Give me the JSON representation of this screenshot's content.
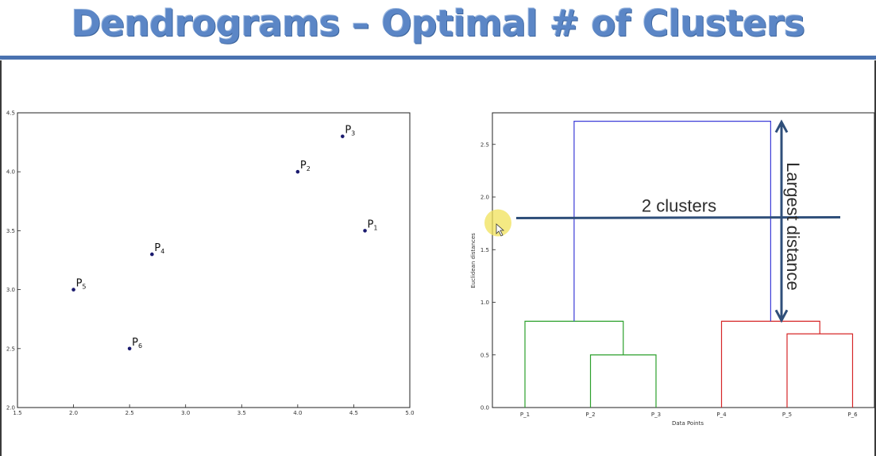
{
  "page": {
    "title": "Dendrograms – Optimal # of Clusters"
  },
  "colors": {
    "title": "#5b86c6",
    "rule": "#4a72b0",
    "cluster_green": "#2ca02c",
    "cluster_red": "#d62728",
    "root_blue": "#3b3bd8",
    "annotation": "#2f4f7a",
    "highlight": "#f0e25a"
  },
  "chart_data": [
    {
      "type": "scatter",
      "title": "",
      "xlabel": "",
      "ylabel": "",
      "xlim": [
        1.5,
        5.0
      ],
      "ylim": [
        2.0,
        4.5
      ],
      "xticks": [
        "1.5",
        "2.0",
        "2.5",
        "3.0",
        "3.5",
        "4.0",
        "4.5",
        "5.0"
      ],
      "yticks": [
        "2.0",
        "2.5",
        "3.0",
        "3.5",
        "4.0",
        "4.5"
      ],
      "points": [
        {
          "label": "P",
          "sub": "1",
          "x": 4.6,
          "y": 3.5
        },
        {
          "label": "P",
          "sub": "2",
          "x": 4.0,
          "y": 4.0
        },
        {
          "label": "P",
          "sub": "3",
          "x": 4.4,
          "y": 4.3
        },
        {
          "label": "P",
          "sub": "4",
          "x": 2.7,
          "y": 3.3
        },
        {
          "label": "P",
          "sub": "5",
          "x": 2.0,
          "y": 3.0
        },
        {
          "label": "P",
          "sub": "6",
          "x": 2.5,
          "y": 2.5
        }
      ]
    },
    {
      "type": "dendrogram",
      "xlabel": "Data Points",
      "ylabel": "Euclidean distances",
      "ylim": [
        0.0,
        2.8
      ],
      "yticks": [
        "0.0",
        "0.5",
        "1.0",
        "1.5",
        "2.0",
        "2.5"
      ],
      "leaves": [
        "P_1",
        "P_2",
        "P_3",
        "P_4",
        "P_5",
        "P_6"
      ],
      "links": [
        {
          "left": 1,
          "right": 2,
          "height": 0.5,
          "color": "green"
        },
        {
          "left": 0,
          "right": "P_2+P_3",
          "height": 0.82,
          "color": "green"
        },
        {
          "left": 4,
          "right": 5,
          "height": 0.7,
          "color": "red"
        },
        {
          "left": 3,
          "right": "P_5+P_6",
          "height": 0.82,
          "color": "red"
        },
        {
          "left": "green-cluster",
          "right": "red-cluster",
          "height": 2.72,
          "color": "blue"
        }
      ],
      "threshold": 1.8,
      "annotations": {
        "cut_label": "2 clusters",
        "distance_label": "Largest distance"
      }
    }
  ]
}
